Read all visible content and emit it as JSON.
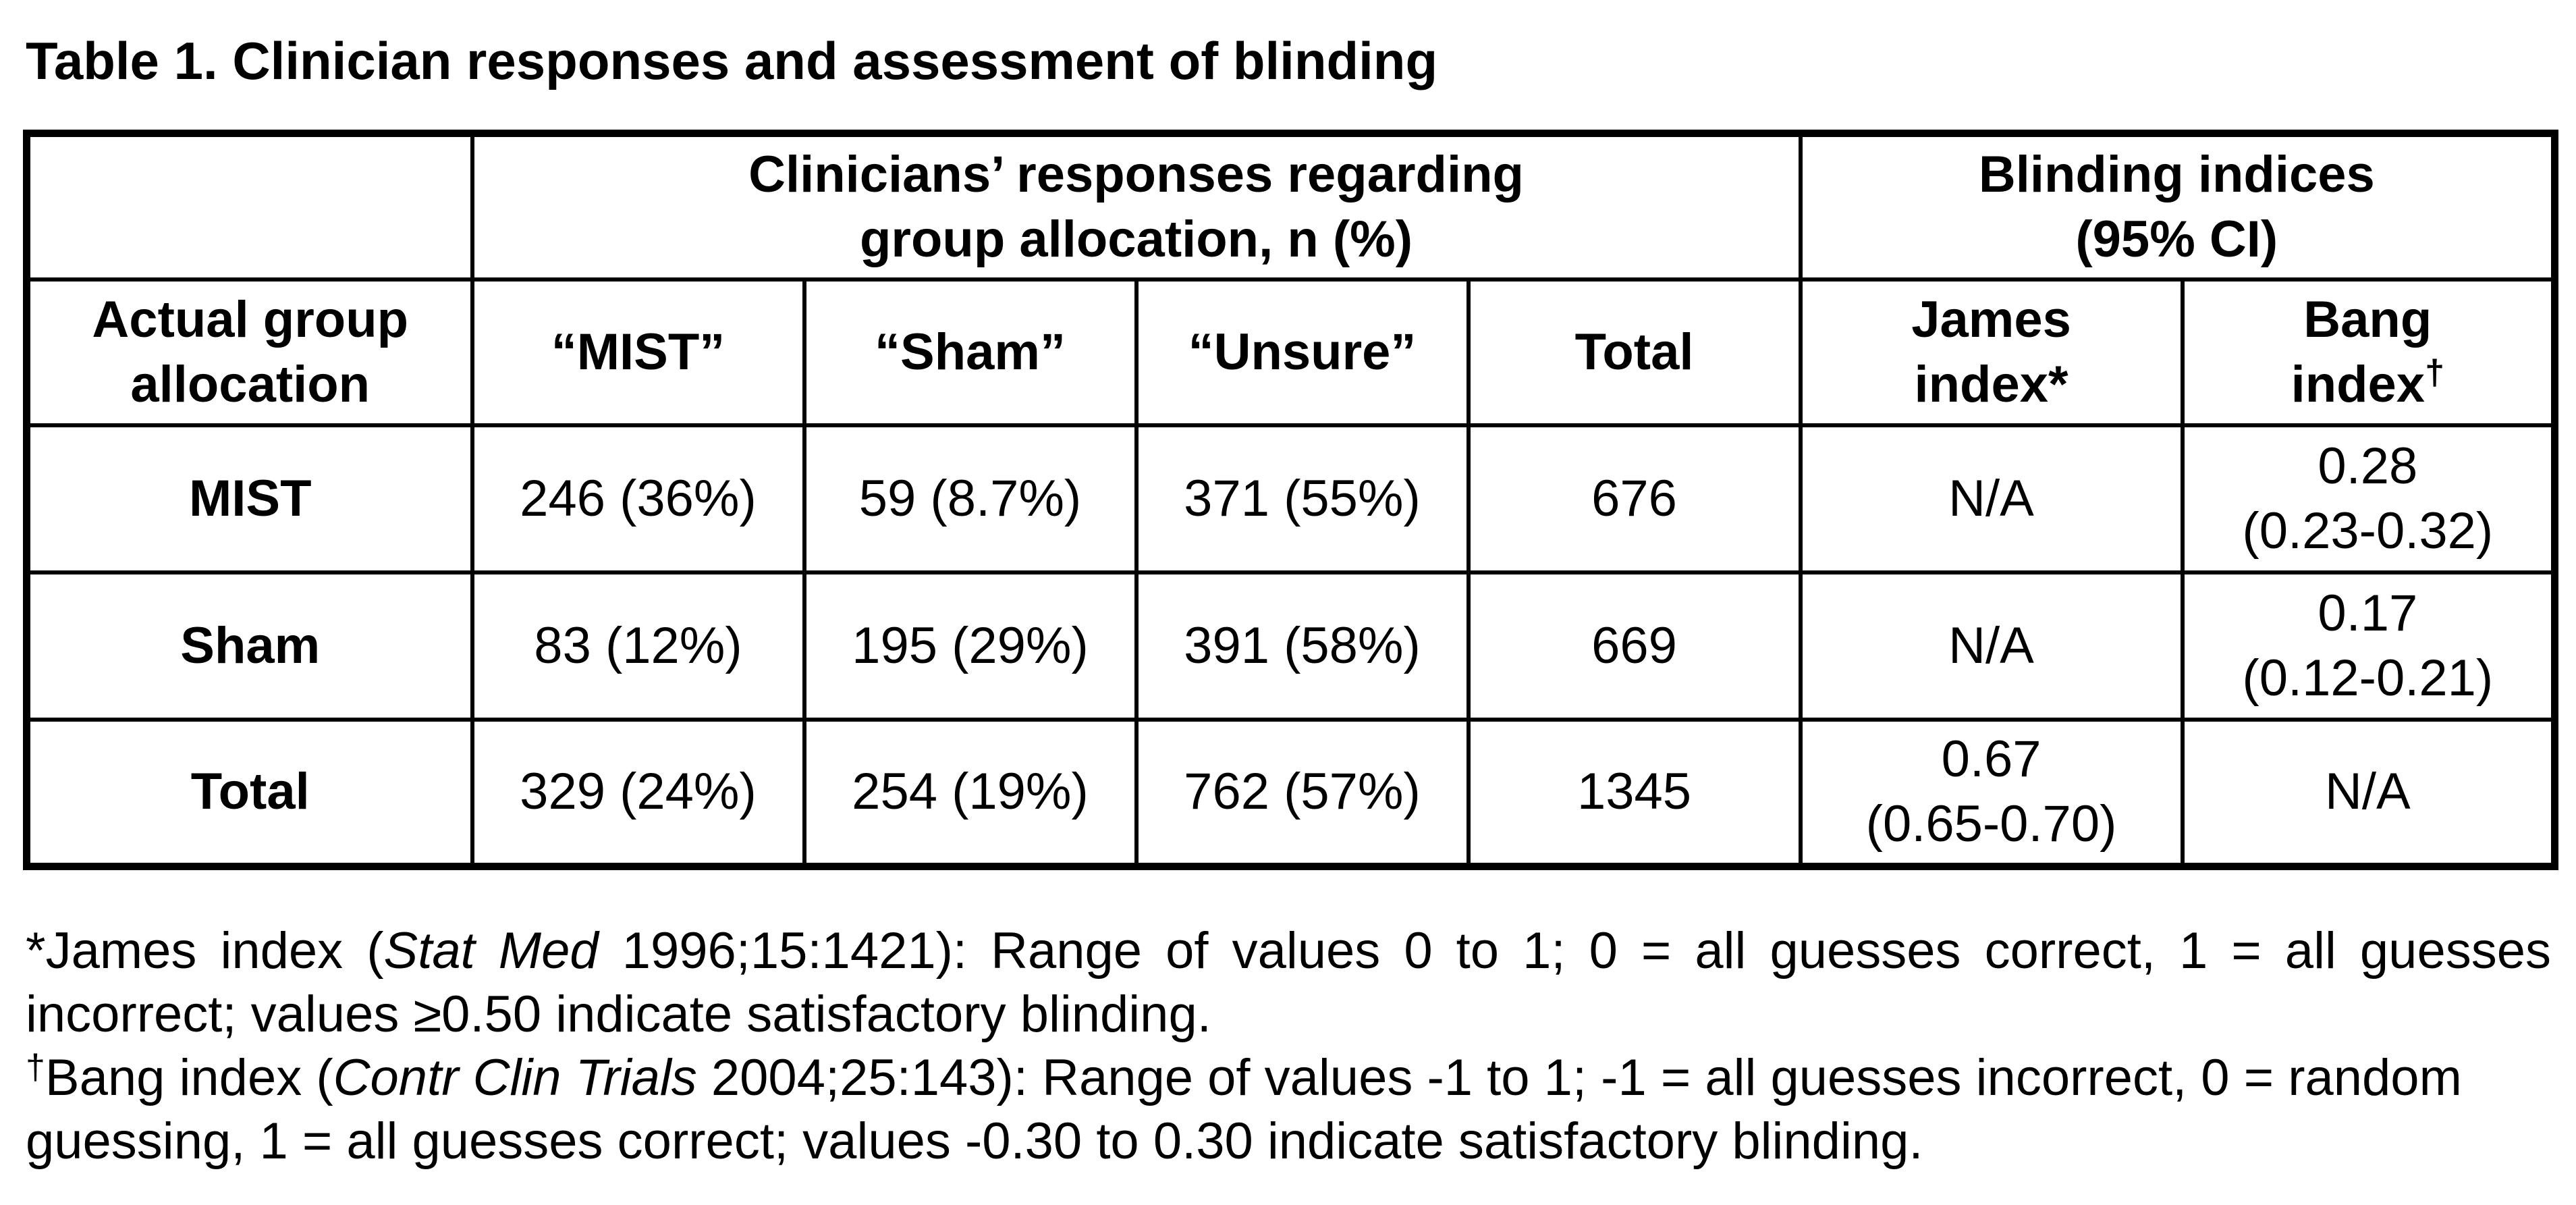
{
  "title": "Table 1. Clinician responses and assessment of blinding",
  "header": {
    "group_responses": [
      "Clinicians’ responses regarding",
      "group allocation, n (%)"
    ],
    "blinding_indices": [
      "Blinding indices",
      "(95% CI)"
    ],
    "actual_group": [
      "Actual group",
      "allocation"
    ],
    "col_mist": "“MIST”",
    "col_sham": "“Sham”",
    "col_unsure": "“Unsure”",
    "col_total": "Total",
    "james_index": [
      "James",
      "index*"
    ],
    "bang_index": [
      "Bang",
      "index"
    ],
    "bang_mark": "†"
  },
  "rows": [
    {
      "label": "MIST",
      "mist": "246 (36%)",
      "sham": "59 (8.7%)",
      "unsure": "371 (55%)",
      "total": "676",
      "james": [
        "N/A"
      ],
      "bang": [
        "0.28",
        "(0.23-0.32)"
      ]
    },
    {
      "label": "Sham",
      "mist": "83 (12%)",
      "sham": "195 (29%)",
      "unsure": "391 (58%)",
      "total": "669",
      "james": [
        "N/A"
      ],
      "bang": [
        "0.17",
        "(0.12-0.21)"
      ]
    },
    {
      "label": "Total",
      "mist": "329 (24%)",
      "sham": "254 (19%)",
      "unsure": "762 (57%)",
      "total": "1345",
      "james": [
        "0.67",
        "(0.65-0.70)"
      ],
      "bang": [
        "N/A"
      ]
    }
  ],
  "footnotes": {
    "james": {
      "prefix": "*James index (",
      "journal": "Stat Med",
      "suffix": " 1996;15:1421): Range of values 0 to 1; 0 = all guesses correct, 1 = all guesses incorrect; values ≥0.50 indicate satisfactory blinding."
    },
    "bang": {
      "mark": "†",
      "prefix": "Bang index (",
      "journal": "Contr Clin Trials",
      "suffix": " 2004;25:143): Range of values -1 to 1; -1 = all guesses incorrect, 0 = random guessing, 1 = all guesses correct; values -0.30 to 0.30 indicate satisfactory blinding."
    }
  }
}
